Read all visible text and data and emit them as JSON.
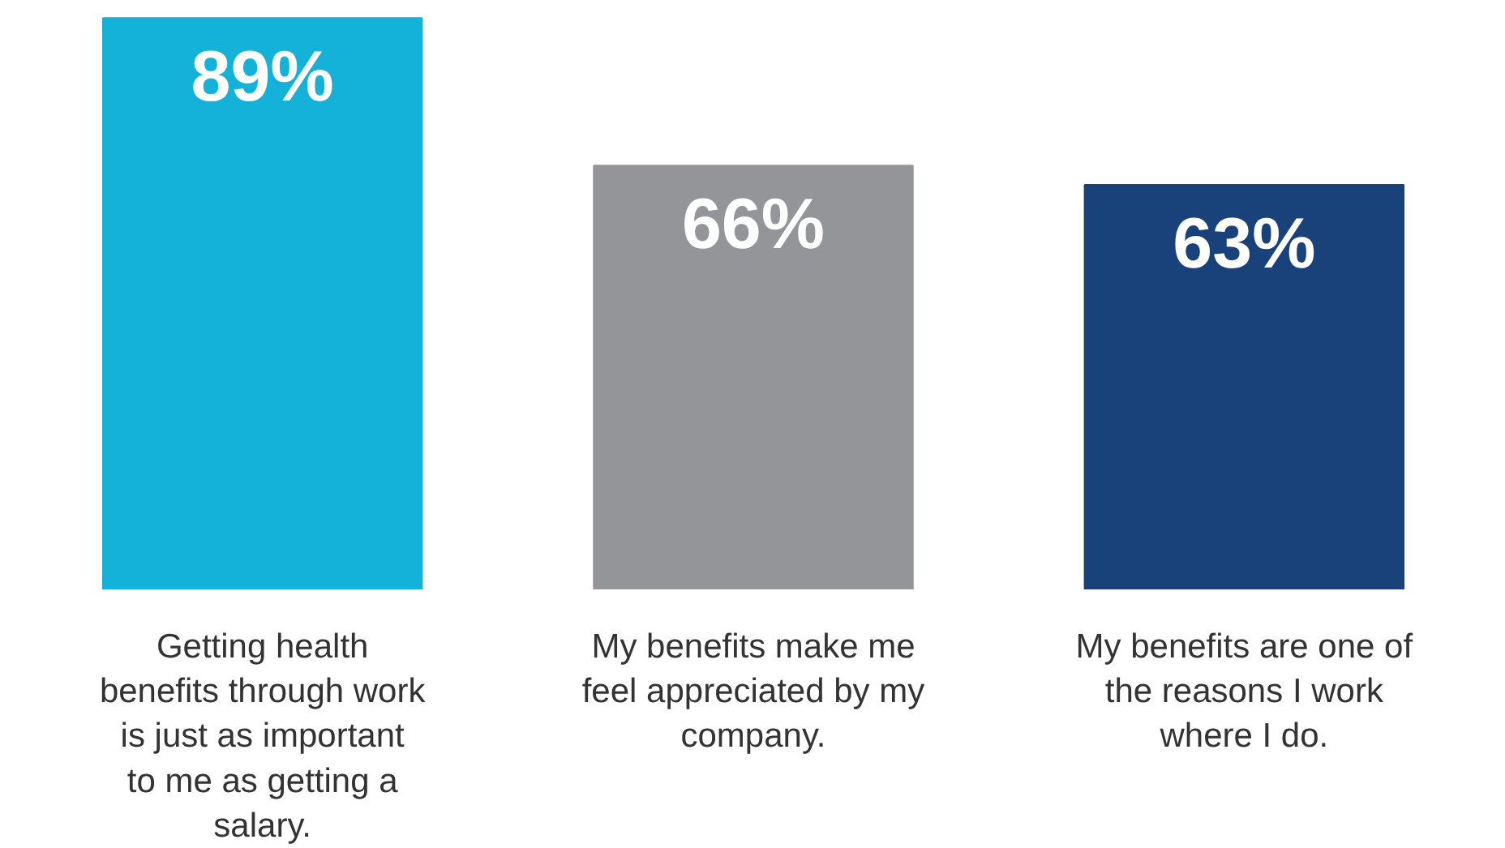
{
  "chart_data": {
    "type": "bar",
    "categories": [
      "Getting health benefits through work is just as important to me as getting a salary.",
      "My benefits make me feel appreciated by my company.",
      "My benefits are one of the reasons I work where I do."
    ],
    "values": [
      89,
      66,
      63
    ],
    "colors": [
      "#14b1d8",
      "#939598",
      "#1a427a"
    ],
    "value_labels": [
      "89%",
      "66%",
      "63%"
    ]
  }
}
